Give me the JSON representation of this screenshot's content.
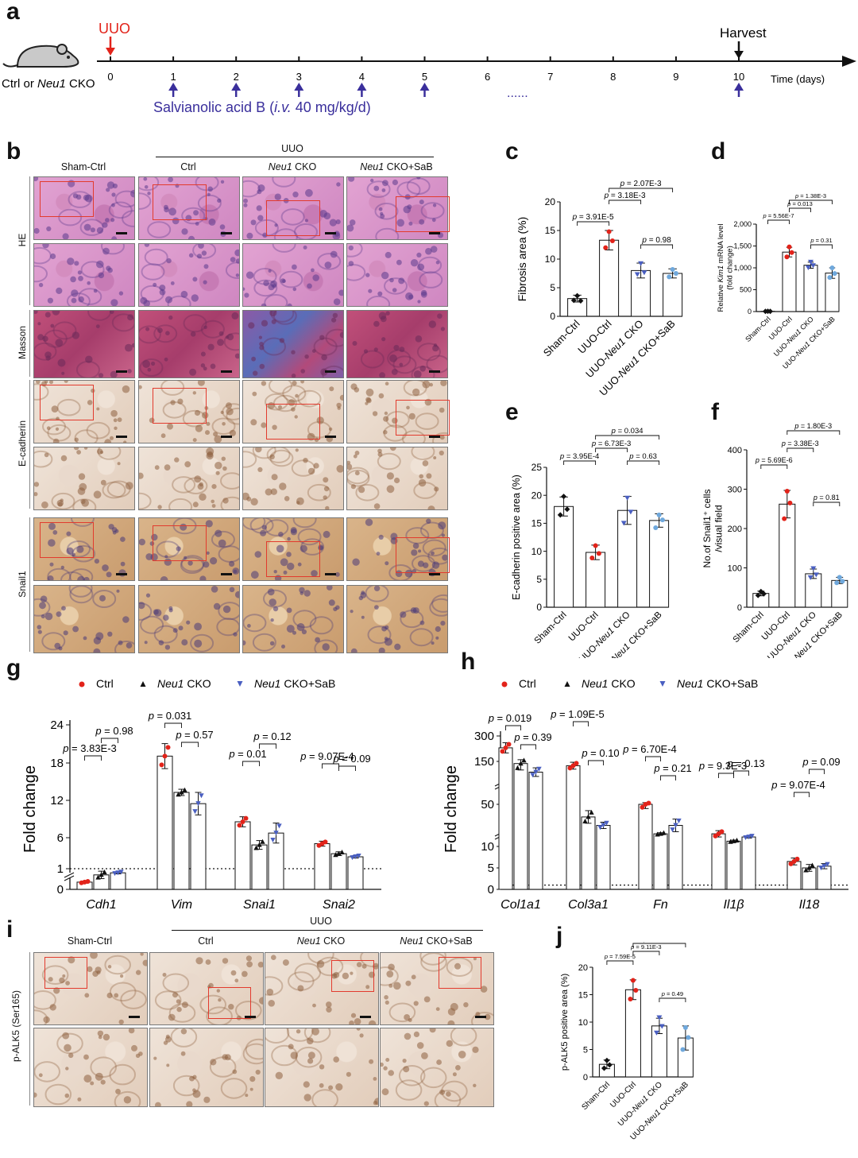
{
  "panel_labels": {
    "a": "a",
    "b": "b",
    "c": "c",
    "d": "d",
    "e": "e",
    "f": "f",
    "g": "g",
    "h": "h",
    "i": "i",
    "j": "j"
  },
  "timeline": {
    "uuo": "UUO",
    "harvest": "Harvest",
    "mouse_label_pre": "Ctrl or ",
    "mouse_label_gene": "Neu1",
    "mouse_label_post": " CKO",
    "days": [
      "0",
      "1",
      "2",
      "3",
      "4",
      "5",
      "6",
      "7",
      "8",
      "9",
      "10"
    ],
    "axis_label": "Time (days)",
    "treatment_pre": "Salvianolic acid B (",
    "treatment_route": "i.v.",
    "treatment_post": " 40 mg/kg/d)",
    "dots": "......",
    "colors": {
      "uuo": "#e2231a",
      "treatment": "#3a2f9c"
    }
  },
  "histology_b": {
    "group_header": "UUO",
    "columns": [
      "Sham-Ctrl",
      "Ctrl",
      "Neu1 CKO",
      "Neu1 CKO+SaB"
    ],
    "rows": [
      "HE",
      "Masson",
      "E-cadherin",
      "Snail1"
    ]
  },
  "histology_i": {
    "group_header": "UUO",
    "columns": [
      "Sham-Ctrl",
      "Ctrl",
      "Neu1 CKO",
      "Neu1 CKO+SaB"
    ],
    "row": "p-ALK5 (Ser165)"
  },
  "legend_gh": [
    "Ctrl",
    "Neu1 CKO",
    "Neu1 CKO+SaB"
  ],
  "series_colors": {
    "ctrl": "#e2231a",
    "cko": "#111111",
    "sab": "#4a5fc1",
    "sab_light": "#6fa8dc"
  },
  "chart_data": [
    {
      "panel": "c",
      "type": "bar",
      "categories": [
        "Sham-Ctrl",
        "UUO-Ctrl",
        "UUO-Neu1 CKO",
        "UUO-Neu1 CKO+SaB"
      ],
      "values": [
        3.1,
        13.3,
        8.0,
        7.5
      ],
      "sd": [
        0.6,
        1.7,
        1.3,
        0.8
      ],
      "points": [
        [
          2.8,
          3.6,
          2.7
        ],
        [
          12.0,
          14.8,
          13.2
        ],
        [
          7.3,
          9.2,
          7.6
        ],
        [
          6.9,
          8.2,
          7.5
        ]
      ],
      "ylabel": "Fibrosis area (%)",
      "ylim": [
        0,
        20
      ],
      "yticks": [
        "0",
        "5",
        "10",
        "15",
        "20"
      ],
      "pvalues": [
        {
          "from": 0,
          "to": 1,
          "text": "p = 3.91E-5"
        },
        {
          "from": 1,
          "to": 2,
          "text": "p = 3.18E-3"
        },
        {
          "from": 1,
          "to": 3,
          "text": "p = 2.07E-3"
        },
        {
          "from": 2,
          "to": 3,
          "text": "p = 0.98"
        }
      ]
    },
    {
      "panel": "d",
      "type": "bar",
      "categories": [
        "Sham-Ctrl",
        "UUO-Ctrl",
        "UUO-Neu1 CKO",
        "UUO-Neu1 CKO+SaB"
      ],
      "values": [
        5,
        1360,
        1060,
        880
      ],
      "sd": [
        3,
        110,
        70,
        120
      ],
      "points": [
        [
          4,
          6,
          5
        ],
        [
          1250,
          1480,
          1350
        ],
        [
          1000,
          1130,
          1050
        ],
        [
          780,
          1000,
          870
        ]
      ],
      "ylabel": "Relative Kim1 mRNA level (fold change)",
      "ylim": [
        0,
        2000
      ],
      "yticks": [
        "0",
        "500",
        "1,000",
        "1,500",
        "2,000"
      ],
      "pvalues": [
        {
          "from": 0,
          "to": 1,
          "text": "p = 5.56E-7"
        },
        {
          "from": 1,
          "to": 2,
          "text": "p = 0.013"
        },
        {
          "from": 1,
          "to": 3,
          "text": "p = 1.38E-3"
        },
        {
          "from": 2,
          "to": 3,
          "text": "p = 0.31"
        }
      ]
    },
    {
      "panel": "e",
      "type": "bar",
      "categories": [
        "Sham-Ctrl",
        "UUO-Ctrl",
        "UUO-Neu1 CKO",
        "UUO-Neu1 CKO+SaB"
      ],
      "values": [
        18.0,
        9.8,
        17.3,
        15.5
      ],
      "sd": [
        1.7,
        1.3,
        2.5,
        1.2
      ],
      "points": [
        [
          16.5,
          19.8,
          17.5
        ],
        [
          8.8,
          11.0,
          9.6
        ],
        [
          15.0,
          19.5,
          17.0
        ],
        [
          14.2,
          16.5,
          15.6
        ]
      ],
      "ylabel": "E-cadherin positive area (%)",
      "ylim": [
        0,
        25
      ],
      "yticks": [
        "0",
        "5",
        "10",
        "15",
        "20",
        "25"
      ],
      "pvalues": [
        {
          "from": 0,
          "to": 1,
          "text": "p = 3.95E-4"
        },
        {
          "from": 1,
          "to": 2,
          "text": "p = 6.73E-3"
        },
        {
          "from": 1,
          "to": 3,
          "text": "p = 0.034"
        },
        {
          "from": 2,
          "to": 3,
          "text": "p = 0.63"
        }
      ]
    },
    {
      "panel": "f",
      "type": "bar",
      "categories": [
        "Sham-Ctrl",
        "UUO-Ctrl",
        "UUO-Neu1 CKO",
        "UUO-Neu1 CKO+SaB"
      ],
      "values": [
        35,
        262,
        85,
        68
      ],
      "sd": [
        6,
        35,
        12,
        8
      ],
      "points": [
        [
          30,
          40,
          34
        ],
        [
          225,
          295,
          265
        ],
        [
          75,
          98,
          82
        ],
        [
          62,
          76,
          66
        ]
      ],
      "ylabel": "No.of Snail1⁺ cells /visual field",
      "ylim": [
        0,
        400
      ],
      "yticks": [
        "0",
        "100",
        "200",
        "300",
        "400"
      ],
      "pvalues": [
        {
          "from": 0,
          "to": 1,
          "text": "p = 5.69E-6"
        },
        {
          "from": 1,
          "to": 2,
          "text": "p = 3.38E-3"
        },
        {
          "from": 1,
          "to": 3,
          "text": "p = 1.80E-3"
        },
        {
          "from": 2,
          "to": 3,
          "text": "p = 0.81"
        }
      ]
    },
    {
      "panel": "g",
      "type": "bar",
      "categories": [
        "Cdh1",
        "Vim",
        "Snai1",
        "Snai2"
      ],
      "series": [
        {
          "name": "Ctrl",
          "values": [
            0.35,
            19.0,
            8.5,
            5.0
          ],
          "sd": [
            0.05,
            2.0,
            0.8,
            0.4
          ]
        },
        {
          "name": "Neu1 CKO",
          "values": [
            0.7,
            13.2,
            4.8,
            3.4
          ],
          "sd": [
            0.18,
            0.5,
            0.7,
            0.3
          ]
        },
        {
          "name": "Neu1 CKO+SaB",
          "values": [
            0.8,
            11.4,
            6.7,
            2.9
          ],
          "sd": [
            0.05,
            1.8,
            1.6,
            0.2
          ]
        }
      ],
      "ylabel": "Fold change",
      "ylim": [
        0,
        24
      ],
      "yticks": [
        "0",
        "1",
        "6",
        "12",
        "18",
        "24"
      ],
      "reference_line": 1,
      "pvalues": [
        {
          "cat": 0,
          "pair": [
            0,
            1
          ],
          "text": "p = 3.83E-3"
        },
        {
          "cat": 0,
          "pair": [
            1,
            2
          ],
          "text": "p = 0.98"
        },
        {
          "cat": 1,
          "pair": [
            0,
            1
          ],
          "text": "p = 0.031"
        },
        {
          "cat": 1,
          "pair": [
            1,
            2
          ],
          "text": "p = 0.57"
        },
        {
          "cat": 2,
          "pair": [
            0,
            1
          ],
          "text": "p = 0.01"
        },
        {
          "cat": 2,
          "pair": [
            1,
            2
          ],
          "text": "p = 0.12"
        },
        {
          "cat": 3,
          "pair": [
            0,
            1
          ],
          "text": "p = 9.07E-4"
        },
        {
          "cat": 3,
          "pair": [
            1,
            2
          ],
          "text": "p = 0.09"
        }
      ]
    },
    {
      "panel": "h",
      "type": "bar",
      "categories": [
        "Col1a1",
        "Col3a1",
        "Fn",
        "Il1β",
        "Il18"
      ],
      "series": [
        {
          "name": "Ctrl",
          "values": [
            230,
            140,
            50,
            22,
            6.5
          ],
          "sd": [
            30,
            8,
            4,
            3,
            0.8
          ]
        },
        {
          "name": "Neu1 CKO",
          "values": [
            145,
            38,
            22,
            15,
            5.0
          ],
          "sd": [
            15,
            6,
            1,
            1,
            0.8
          ]
        },
        {
          "name": "Neu1 CKO+SaB",
          "values": [
            125,
            30,
            30,
            19,
            5.4
          ],
          "sd": [
            10,
            3,
            6,
            1,
            0.6
          ]
        }
      ],
      "ylabel": "Fold change",
      "yticks": [
        "0",
        "5",
        "10",
        "50",
        "150",
        "300"
      ],
      "reference_line": 1,
      "pvalues": [
        {
          "cat": 0,
          "pair": [
            0,
            1
          ],
          "text": "p = 0.019"
        },
        {
          "cat": 0,
          "pair": [
            1,
            2
          ],
          "text": "p = 0.39"
        },
        {
          "cat": 1,
          "pair": [
            0,
            1
          ],
          "text": "p = 1.09E-5"
        },
        {
          "cat": 1,
          "pair": [
            1,
            2
          ],
          "text": "p = 0.10"
        },
        {
          "cat": 2,
          "pair": [
            0,
            1
          ],
          "text": "p = 6.70E-4"
        },
        {
          "cat": 2,
          "pair": [
            1,
            2
          ],
          "text": "p = 0.21"
        },
        {
          "cat": 3,
          "pair": [
            0,
            1
          ],
          "text": "p = 9.3E-3"
        },
        {
          "cat": 3,
          "pair": [
            1,
            2
          ],
          "text": "p = 0.13"
        },
        {
          "cat": 4,
          "pair": [
            0,
            1
          ],
          "text": "p = 9.07E-4"
        },
        {
          "cat": 4,
          "pair": [
            1,
            2
          ],
          "text": "p = 0.09"
        }
      ]
    },
    {
      "panel": "j",
      "type": "bar",
      "categories": [
        "Sham-Ctrl",
        "UUO-Ctrl",
        "UUO-Neu1 CKO",
        "UUO-Neu1 CKO+SaB"
      ],
      "values": [
        2.3,
        15.9,
        9.3,
        7.1
      ],
      "sd": [
        0.8,
        1.8,
        1.4,
        2.2
      ],
      "points": [
        [
          1.6,
          3.0,
          2.2
        ],
        [
          14.2,
          17.6,
          15.8
        ],
        [
          8.0,
          10.8,
          9.2
        ],
        [
          5.0,
          9.0,
          7.2
        ]
      ],
      "ylabel": "p-ALK5 positive area (%)",
      "ylim": [
        0,
        20
      ],
      "yticks": [
        "0",
        "5",
        "10",
        "15",
        "20"
      ],
      "pvalues": [
        {
          "from": 0,
          "to": 1,
          "text": "p = 7.59E-5"
        },
        {
          "from": 1,
          "to": 2,
          "text": "p = 9.11E-3"
        },
        {
          "from": 1,
          "to": 3,
          "text": "p = 1.54E-3"
        },
        {
          "from": 2,
          "to": 3,
          "text": "p = 0.49"
        }
      ]
    }
  ]
}
